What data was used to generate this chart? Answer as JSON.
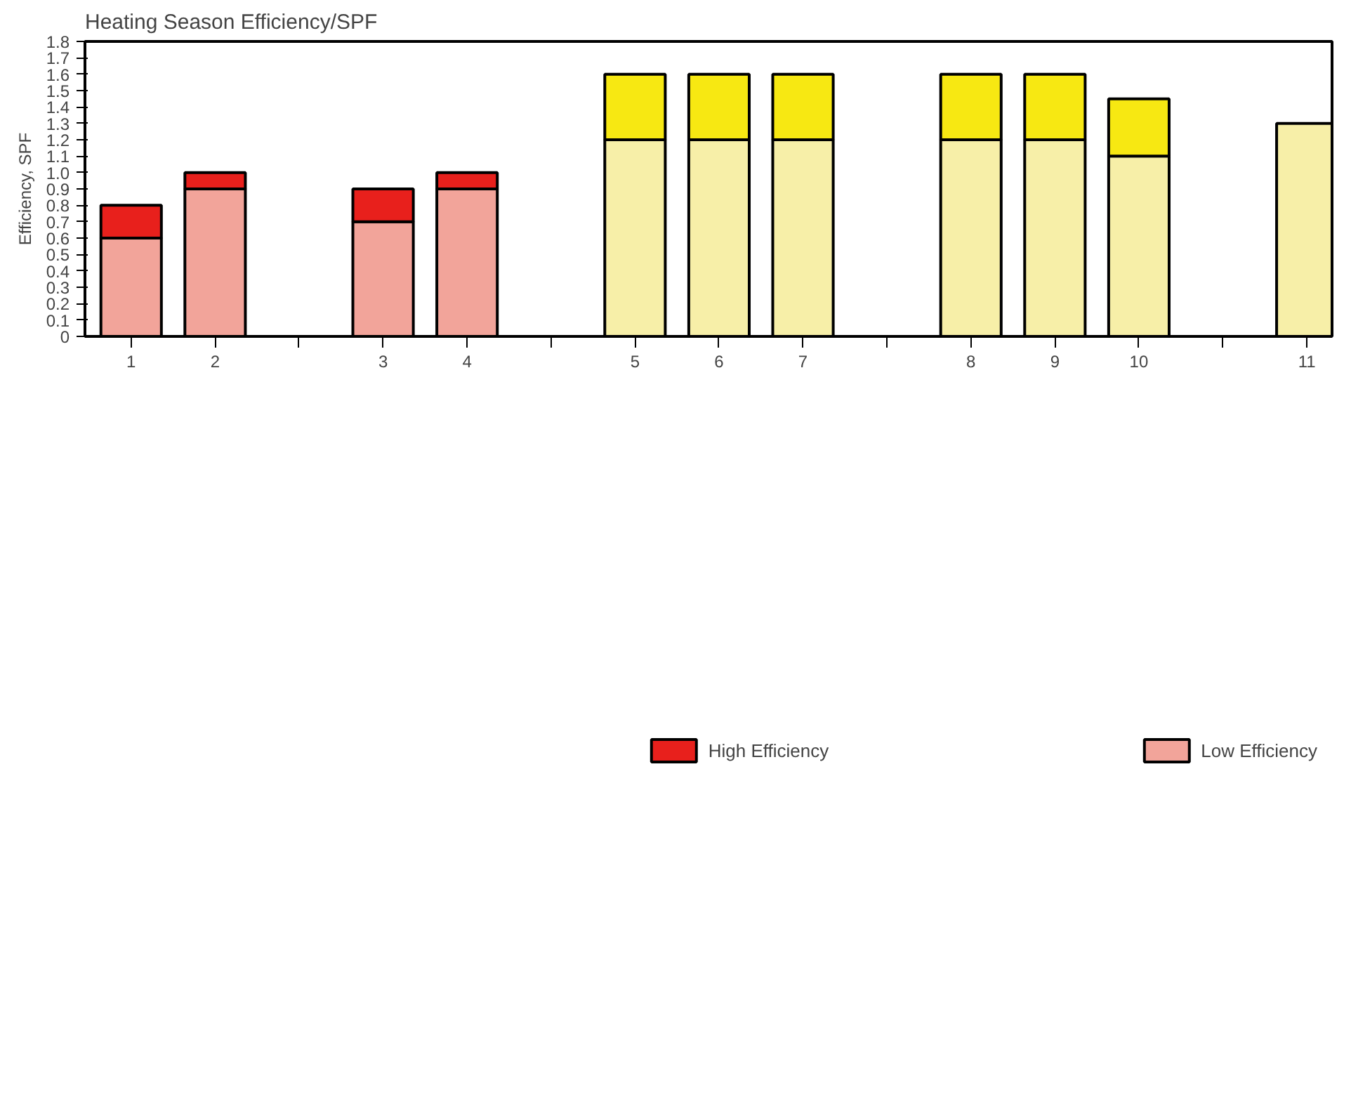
{
  "chart_data": {
    "type": "bar",
    "title": "Heating Season Efficiency/SPF",
    "ylabel": "Efficiency, SPF",
    "stacked": true,
    "categories": [
      "1",
      "2",
      null,
      "3",
      "4",
      null,
      "5",
      "6",
      "7",
      null,
      "8",
      "9",
      "10",
      null,
      "11"
    ],
    "series": [
      {
        "name": "Low Efficiency",
        "values": [
          0.6,
          0.9,
          null,
          0.7,
          0.9,
          null,
          1.2,
          1.2,
          1.2,
          null,
          1.2,
          1.2,
          1.1,
          null,
          1.3
        ],
        "colors": [
          "#f2a49a",
          "#f2a49a",
          null,
          "#f2a49a",
          "#f2a49a",
          null,
          "#f7efa8",
          "#f7efa8",
          "#f7efa8",
          null,
          "#f7efa8",
          "#f7efa8",
          "#f7efa8",
          null,
          "#f7efa8"
        ]
      },
      {
        "name": "High Efficiency",
        "values": [
          0.2,
          0.1,
          null,
          0.2,
          0.1,
          null,
          0.4,
          0.4,
          0.4,
          null,
          0.4,
          0.4,
          0.35,
          null,
          null
        ],
        "colors": [
          "#e8201c",
          "#e8201c",
          null,
          "#e8201c",
          "#e8201c",
          null,
          "#f7e812",
          "#f7e812",
          "#f7e812",
          null,
          "#f7e812",
          "#f7e812",
          "#f7e812",
          null,
          null
        ]
      }
    ],
    "ylim": [
      0,
      1.8
    ],
    "yticks": [
      0,
      0.1,
      0.2,
      0.3,
      0.4,
      0.5,
      0.6,
      0.7,
      0.8,
      0.9,
      {
        "value": 1,
        "label": "1.0"
      },
      1.1,
      1.2,
      1.3,
      1.4,
      1.5,
      1.6,
      1.7,
      1.8
    ],
    "grid": false,
    "legend": "bottom"
  }
}
